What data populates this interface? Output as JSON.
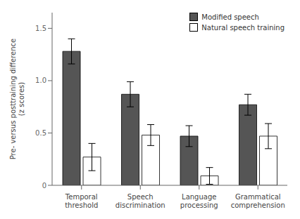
{
  "chart_data": {
    "type": "bar",
    "categories": [
      "Temporal\nthreshold",
      "Speech\ndiscrimination",
      "Language\nprocessing",
      "Grammatical\ncomprehension"
    ],
    "series": [
      {
        "name": "Modified speech",
        "color": "#555555",
        "values": [
          1.28,
          0.87,
          0.47,
          0.77
        ],
        "errors": [
          0.12,
          0.12,
          0.1,
          0.1
        ]
      },
      {
        "name": "Natural speech training",
        "color": "#ffffff",
        "values": [
          0.27,
          0.48,
          0.09,
          0.47
        ],
        "errors": [
          0.13,
          0.1,
          0.08,
          0.12
        ]
      }
    ],
    "y_label": "Pre- versus posttraining difference\n(z scores)",
    "ylim": [
      0,
      1.65
    ],
    "yticks": [
      0,
      0.5,
      {
        "value": 1,
        "label": "1.0"
      },
      1.5
    ],
    "legend": "upper right",
    "grid": false
  }
}
